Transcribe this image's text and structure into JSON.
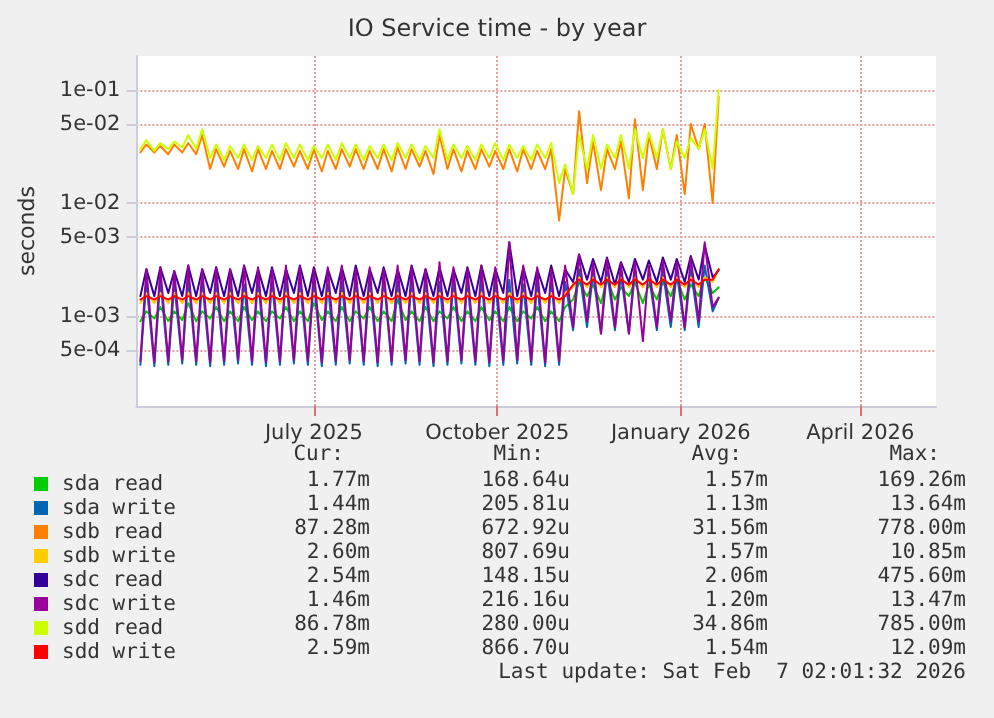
{
  "chart_data": {
    "type": "line",
    "title": "IO Service time - by year",
    "ylabel": "seconds",
    "log": "y",
    "grid": true,
    "legend": "bottom left",
    "marker": "none",
    "line_style": "solid",
    "xlim": [
      "2025-04-18",
      "2026-05-24"
    ],
    "xticks": [
      {
        "value": "2025-07-16",
        "label": "July 2025"
      },
      {
        "value": "2025-10-16",
        "label": "October 2025"
      },
      {
        "value": "2026-01-16",
        "label": "January 2026"
      },
      {
        "value": "2026-04-16",
        "label": "April 2026"
      }
    ],
    "ylim": [
      0.00016,
      0.2
    ],
    "yticks": [
      {
        "value": 0.0005,
        "label": "5e-04"
      },
      {
        "value": 0.001,
        "label": "1e-03"
      },
      {
        "value": 0.005,
        "label": "5e-03"
      },
      {
        "value": 0.01,
        "label": "1e-02"
      },
      {
        "value": 0.05,
        "label": "5e-02"
      },
      {
        "value": 0.1,
        "label": "1e-01"
      }
    ],
    "x": [
      "2025-04-20",
      "2025-04-23",
      "2025-04-27",
      "2025-04-30",
      "2025-05-04",
      "2025-05-07",
      "2025-05-11",
      "2025-05-14",
      "2025-05-18",
      "2025-05-21",
      "2025-05-25",
      "2025-05-28",
      "2025-06-01",
      "2025-06-04",
      "2025-06-08",
      "2025-06-11",
      "2025-06-15",
      "2025-06-18",
      "2025-06-22",
      "2025-06-25",
      "2025-06-29",
      "2025-07-02",
      "2025-07-06",
      "2025-07-09",
      "2025-07-13",
      "2025-07-16",
      "2025-07-20",
      "2025-07-23",
      "2025-07-27",
      "2025-07-30",
      "2025-08-03",
      "2025-08-06",
      "2025-08-10",
      "2025-08-13",
      "2025-08-17",
      "2025-08-20",
      "2025-08-24",
      "2025-08-27",
      "2025-08-31",
      "2025-09-03",
      "2025-09-07",
      "2025-09-10",
      "2025-09-14",
      "2025-09-17",
      "2025-09-21",
      "2025-09-24",
      "2025-09-28",
      "2025-10-01",
      "2025-10-05",
      "2025-10-08",
      "2025-10-12",
      "2025-10-15",
      "2025-10-19",
      "2025-10-22",
      "2025-10-26",
      "2025-10-29",
      "2025-11-02",
      "2025-11-05",
      "2025-11-09",
      "2025-11-12",
      "2025-11-16",
      "2025-11-19",
      "2025-11-23",
      "2025-11-26",
      "2025-11-30",
      "2025-12-03",
      "2025-12-07",
      "2025-12-10",
      "2025-12-14",
      "2025-12-17",
      "2025-12-21",
      "2025-12-24",
      "2025-12-28",
      "2025-12-31",
      "2026-01-04",
      "2026-01-07",
      "2026-01-11",
      "2026-01-14",
      "2026-01-18",
      "2026-01-21",
      "2026-01-25",
      "2026-01-28",
      "2026-02-01",
      "2026-02-04"
    ],
    "series": [
      {
        "name": "sda read",
        "color": "#00cc00",
        "values": [
          0.0009,
          0.0011,
          0.00095,
          0.0012,
          0.0009,
          0.0011,
          0.00092,
          0.0013,
          0.0009,
          0.0011,
          0.00095,
          0.0012,
          0.0009,
          0.0011,
          0.0009,
          0.0012,
          0.00092,
          0.0011,
          0.0009,
          0.0011,
          0.00095,
          0.0012,
          0.0009,
          0.0011,
          0.0009,
          0.0013,
          0.00092,
          0.0011,
          0.0009,
          0.0012,
          0.0009,
          0.0011,
          0.00095,
          0.0012,
          0.0009,
          0.0011,
          0.0009,
          0.0014,
          0.00092,
          0.0011,
          0.0009,
          0.0012,
          0.0009,
          0.0011,
          0.00095,
          0.0012,
          0.0009,
          0.0011,
          0.0009,
          0.0012,
          0.00092,
          0.0011,
          0.0009,
          0.0012,
          0.0009,
          0.0011,
          0.00095,
          0.0012,
          0.0009,
          0.0011,
          0.0009,
          0.0012,
          0.0014,
          0.002,
          0.0015,
          0.0019,
          0.0013,
          0.0021,
          0.0014,
          0.0018,
          0.0015,
          0.002,
          0.0013,
          0.0019,
          0.0014,
          0.002,
          0.0015,
          0.0021,
          0.0014,
          0.0019,
          0.0015,
          0.0022,
          0.0016,
          0.0018
        ]
      },
      {
        "name": "sda write",
        "color": "#0066b3",
        "values": [
          0.00037,
          0.002,
          0.00036,
          0.0021,
          0.00037,
          0.0019,
          0.00038,
          0.0022,
          0.00037,
          0.002,
          0.00036,
          0.0021,
          0.00037,
          0.002,
          0.00038,
          0.0019,
          0.00037,
          0.0021,
          0.00036,
          0.002,
          0.00037,
          0.0022,
          0.00038,
          0.002,
          0.00037,
          0.0021,
          0.00036,
          0.0019,
          0.00037,
          0.002,
          0.00038,
          0.0021,
          0.00037,
          0.002,
          0.00036,
          0.0022,
          0.00037,
          0.002,
          0.00038,
          0.0021,
          0.00037,
          0.0019,
          0.00036,
          0.002,
          0.00037,
          0.0021,
          0.00038,
          0.002,
          0.00037,
          0.0022,
          0.00036,
          0.002,
          0.00037,
          0.0021,
          0.00038,
          0.0019,
          0.00037,
          0.002,
          0.00036,
          0.0021,
          0.00037,
          0.002,
          0.00075,
          0.0026,
          0.0008,
          0.0024,
          0.0007,
          0.0025,
          0.00075,
          0.0023,
          0.0007,
          0.0024,
          null,
          0.0023,
          0.00075,
          0.0025,
          0.0008,
          0.0024,
          0.00075,
          0.0026,
          0.0008,
          0.0028,
          0.0011,
          0.00144
        ]
      },
      {
        "name": "sdb read",
        "color": "#ff8000",
        "values": [
          0.028,
          0.033,
          0.028,
          0.032,
          0.027,
          0.033,
          0.028,
          0.034,
          0.027,
          0.04,
          0.02,
          0.03,
          0.021,
          0.029,
          0.02,
          0.03,
          0.019,
          0.03,
          0.02,
          0.029,
          0.02,
          0.03,
          0.021,
          0.029,
          0.02,
          0.03,
          0.019,
          0.029,
          0.02,
          0.03,
          0.021,
          0.03,
          0.02,
          0.029,
          0.02,
          0.03,
          0.019,
          0.031,
          0.02,
          0.03,
          0.021,
          0.029,
          0.018,
          0.04,
          0.02,
          0.03,
          0.019,
          0.029,
          0.02,
          0.03,
          0.021,
          0.029,
          0.02,
          0.03,
          0.019,
          0.03,
          0.02,
          0.029,
          0.02,
          0.03,
          0.007,
          0.02,
          0.012,
          0.065,
          0.015,
          0.035,
          0.013,
          0.03,
          0.02,
          0.035,
          0.011,
          0.055,
          0.013,
          0.04,
          0.02,
          0.045,
          0.02,
          0.04,
          0.012,
          0.05,
          0.03,
          0.05,
          0.01,
          0.087
        ]
      },
      {
        "name": "sdb write",
        "color": "#ffcc00",
        "values": [
          0.0013,
          0.0016,
          0.0013,
          0.0016,
          0.0013,
          0.0016,
          0.0013,
          0.0016,
          0.0013,
          0.0016,
          0.0013,
          0.0016,
          0.0013,
          0.0016,
          0.0013,
          0.0016,
          0.0013,
          0.0016,
          0.0013,
          0.0016,
          0.0013,
          0.0016,
          0.0013,
          0.0016,
          0.0013,
          0.0016,
          0.0013,
          0.0016,
          0.0013,
          0.0016,
          0.0013,
          0.0016,
          0.0013,
          0.0016,
          0.0013,
          0.0016,
          0.0013,
          0.0016,
          0.0013,
          0.0016,
          0.0013,
          0.0016,
          0.0013,
          0.0016,
          0.0013,
          0.0016,
          0.0013,
          0.0016,
          0.0013,
          0.0016,
          0.0013,
          0.0016,
          0.0013,
          0.0016,
          0.0013,
          0.0016,
          0.0013,
          0.0016,
          0.0013,
          0.0016,
          0.0013,
          0.0016,
          0.0018,
          0.0022,
          0.0018,
          0.0022,
          0.0018,
          0.0022,
          0.0018,
          0.0022,
          0.0018,
          0.0022,
          0.0018,
          0.0022,
          0.0018,
          0.0022,
          0.0018,
          0.0022,
          0.0018,
          0.0022,
          0.0018,
          0.0022,
          0.002,
          0.0026
        ]
      },
      {
        "name": "sdc read",
        "color": "#330099",
        "values": [
          0.0015,
          0.0026,
          0.0015,
          0.0027,
          0.0016,
          0.0025,
          0.0015,
          0.0028,
          0.0015,
          0.0026,
          0.0016,
          0.0027,
          0.0015,
          0.0026,
          0.0015,
          0.0028,
          0.0016,
          0.0026,
          0.0015,
          0.0027,
          0.0015,
          0.0026,
          0.0016,
          0.0028,
          0.0015,
          0.0027,
          0.0015,
          0.0026,
          0.0016,
          0.0027,
          0.0015,
          0.0028,
          0.0015,
          0.0026,
          0.0016,
          0.0027,
          0.0015,
          0.0026,
          0.0015,
          0.0028,
          0.0016,
          0.0026,
          0.0015,
          0.0027,
          0.0015,
          0.0026,
          0.0016,
          0.0027,
          0.0015,
          0.0028,
          0.0015,
          0.0026,
          0.0016,
          0.0045,
          0.0015,
          0.0027,
          0.0015,
          0.0026,
          0.0016,
          0.0028,
          0.0015,
          0.0026,
          0.002,
          0.0035,
          0.0021,
          0.0032,
          0.002,
          0.0033,
          0.0019,
          0.003,
          0.002,
          0.0032,
          0.0021,
          0.0031,
          0.002,
          0.0033,
          0.0021,
          0.0032,
          0.002,
          0.0034,
          0.0021,
          0.0042,
          0.0022,
          0.00254
        ]
      },
      {
        "name": "sdc write",
        "color": "#990099",
        "values": [
          0.0004,
          0.0026,
          0.00039,
          0.0027,
          0.0004,
          0.0025,
          0.00041,
          0.0028,
          0.0004,
          0.0026,
          0.00039,
          0.0027,
          0.0004,
          0.0026,
          0.00041,
          0.0028,
          0.0004,
          0.0027,
          0.00039,
          0.0026,
          0.0004,
          0.0028,
          0.00041,
          0.0027,
          0.0004,
          0.0026,
          0.00039,
          0.0027,
          0.0004,
          0.0028,
          0.00041,
          0.0026,
          0.0004,
          0.0027,
          0.00039,
          0.0026,
          0.0004,
          0.0028,
          0.00041,
          0.0027,
          0.0004,
          0.0026,
          0.00039,
          0.003,
          0.0004,
          0.0027,
          0.00041,
          0.0026,
          0.0004,
          0.0028,
          0.00039,
          0.0027,
          0.0004,
          0.0045,
          0.00041,
          0.0028,
          0.0004,
          0.0027,
          0.00039,
          0.0026,
          0.0004,
          0.0028,
          0.0008,
          0.0035,
          0.0009,
          0.003,
          0.0007,
          0.0032,
          0.0008,
          0.0029,
          0.0007,
          0.003,
          0.0006,
          0.0028,
          0.0008,
          0.0031,
          0.0009,
          0.003,
          0.0008,
          0.0033,
          0.0009,
          0.0045,
          0.0012,
          0.00146
        ]
      },
      {
        "name": "sdd read",
        "color": "#ccff00",
        "values": [
          0.03,
          0.036,
          0.029,
          0.034,
          0.03,
          0.035,
          0.031,
          0.04,
          0.03,
          0.045,
          0.025,
          0.033,
          0.024,
          0.032,
          0.025,
          0.033,
          0.024,
          0.032,
          0.025,
          0.033,
          0.024,
          0.034,
          0.025,
          0.033,
          0.024,
          0.032,
          0.025,
          0.033,
          0.024,
          0.034,
          0.025,
          0.033,
          0.024,
          0.032,
          0.025,
          0.033,
          0.024,
          0.034,
          0.025,
          0.033,
          0.024,
          0.032,
          0.025,
          0.045,
          0.024,
          0.033,
          0.025,
          0.032,
          0.024,
          0.033,
          0.025,
          0.034,
          0.024,
          0.033,
          0.025,
          0.032,
          0.024,
          0.033,
          0.025,
          0.034,
          0.015,
          0.022,
          0.012,
          0.04,
          0.02,
          0.04,
          0.02,
          0.033,
          0.025,
          0.04,
          0.02,
          0.045,
          0.025,
          0.042,
          0.025,
          0.045,
          0.02,
          0.035,
          0.025,
          0.038,
          0.03,
          0.045,
          0.02,
          0.1
        ]
      },
      {
        "name": "sdd write",
        "color": "#ff0000",
        "values": [
          0.0014,
          0.0015,
          0.0014,
          0.0015,
          0.0014,
          0.0015,
          0.0014,
          0.0015,
          0.0014,
          0.0015,
          0.0014,
          0.0015,
          0.0014,
          0.0015,
          0.0014,
          0.0015,
          0.0014,
          0.0015,
          0.0014,
          0.0015,
          0.0014,
          0.0015,
          0.0014,
          0.0015,
          0.0014,
          0.0015,
          0.0014,
          0.0015,
          0.0014,
          0.0015,
          0.0014,
          0.0015,
          0.0014,
          0.0015,
          0.0014,
          0.0015,
          0.0014,
          0.0015,
          0.0014,
          0.0015,
          0.0014,
          0.0015,
          0.0014,
          0.0015,
          0.0014,
          0.0015,
          0.0014,
          0.0015,
          0.0014,
          0.0015,
          0.0014,
          0.0015,
          0.0014,
          0.0015,
          0.0014,
          0.0015,
          0.0014,
          0.0015,
          0.0014,
          0.0015,
          0.0014,
          0.0015,
          0.0019,
          0.0021,
          0.0019,
          0.0021,
          0.0019,
          0.0021,
          0.0019,
          0.0021,
          0.0019,
          0.0021,
          0.0019,
          0.0021,
          0.0019,
          0.0021,
          0.0019,
          0.0021,
          0.0019,
          0.0021,
          0.0019,
          0.0021,
          0.0021,
          0.00259
        ]
      }
    ],
    "annotations": [
      "Cur:",
      "Min:",
      "Avg:",
      "Max:",
      "1.77m",
      "168.64u",
      "1.57m",
      "169.26m",
      "1.44m",
      "205.81u",
      "1.13m",
      "13.64m",
      "87.28m",
      "672.92u",
      "31.56m",
      "778.00m",
      "2.60m",
      "807.69u",
      "1.57m",
      "10.85m",
      "2.54m",
      "148.15u",
      "2.06m",
      "475.60m",
      "1.46m",
      "216.16u",
      "1.20m",
      "13.47m",
      "86.78m",
      "280.00u",
      "34.86m",
      "785.00m",
      "2.59m",
      "866.70u",
      "1.54m",
      "12.09m",
      "Last update: Sat Feb  7 02:01:32 2026"
    ]
  }
}
